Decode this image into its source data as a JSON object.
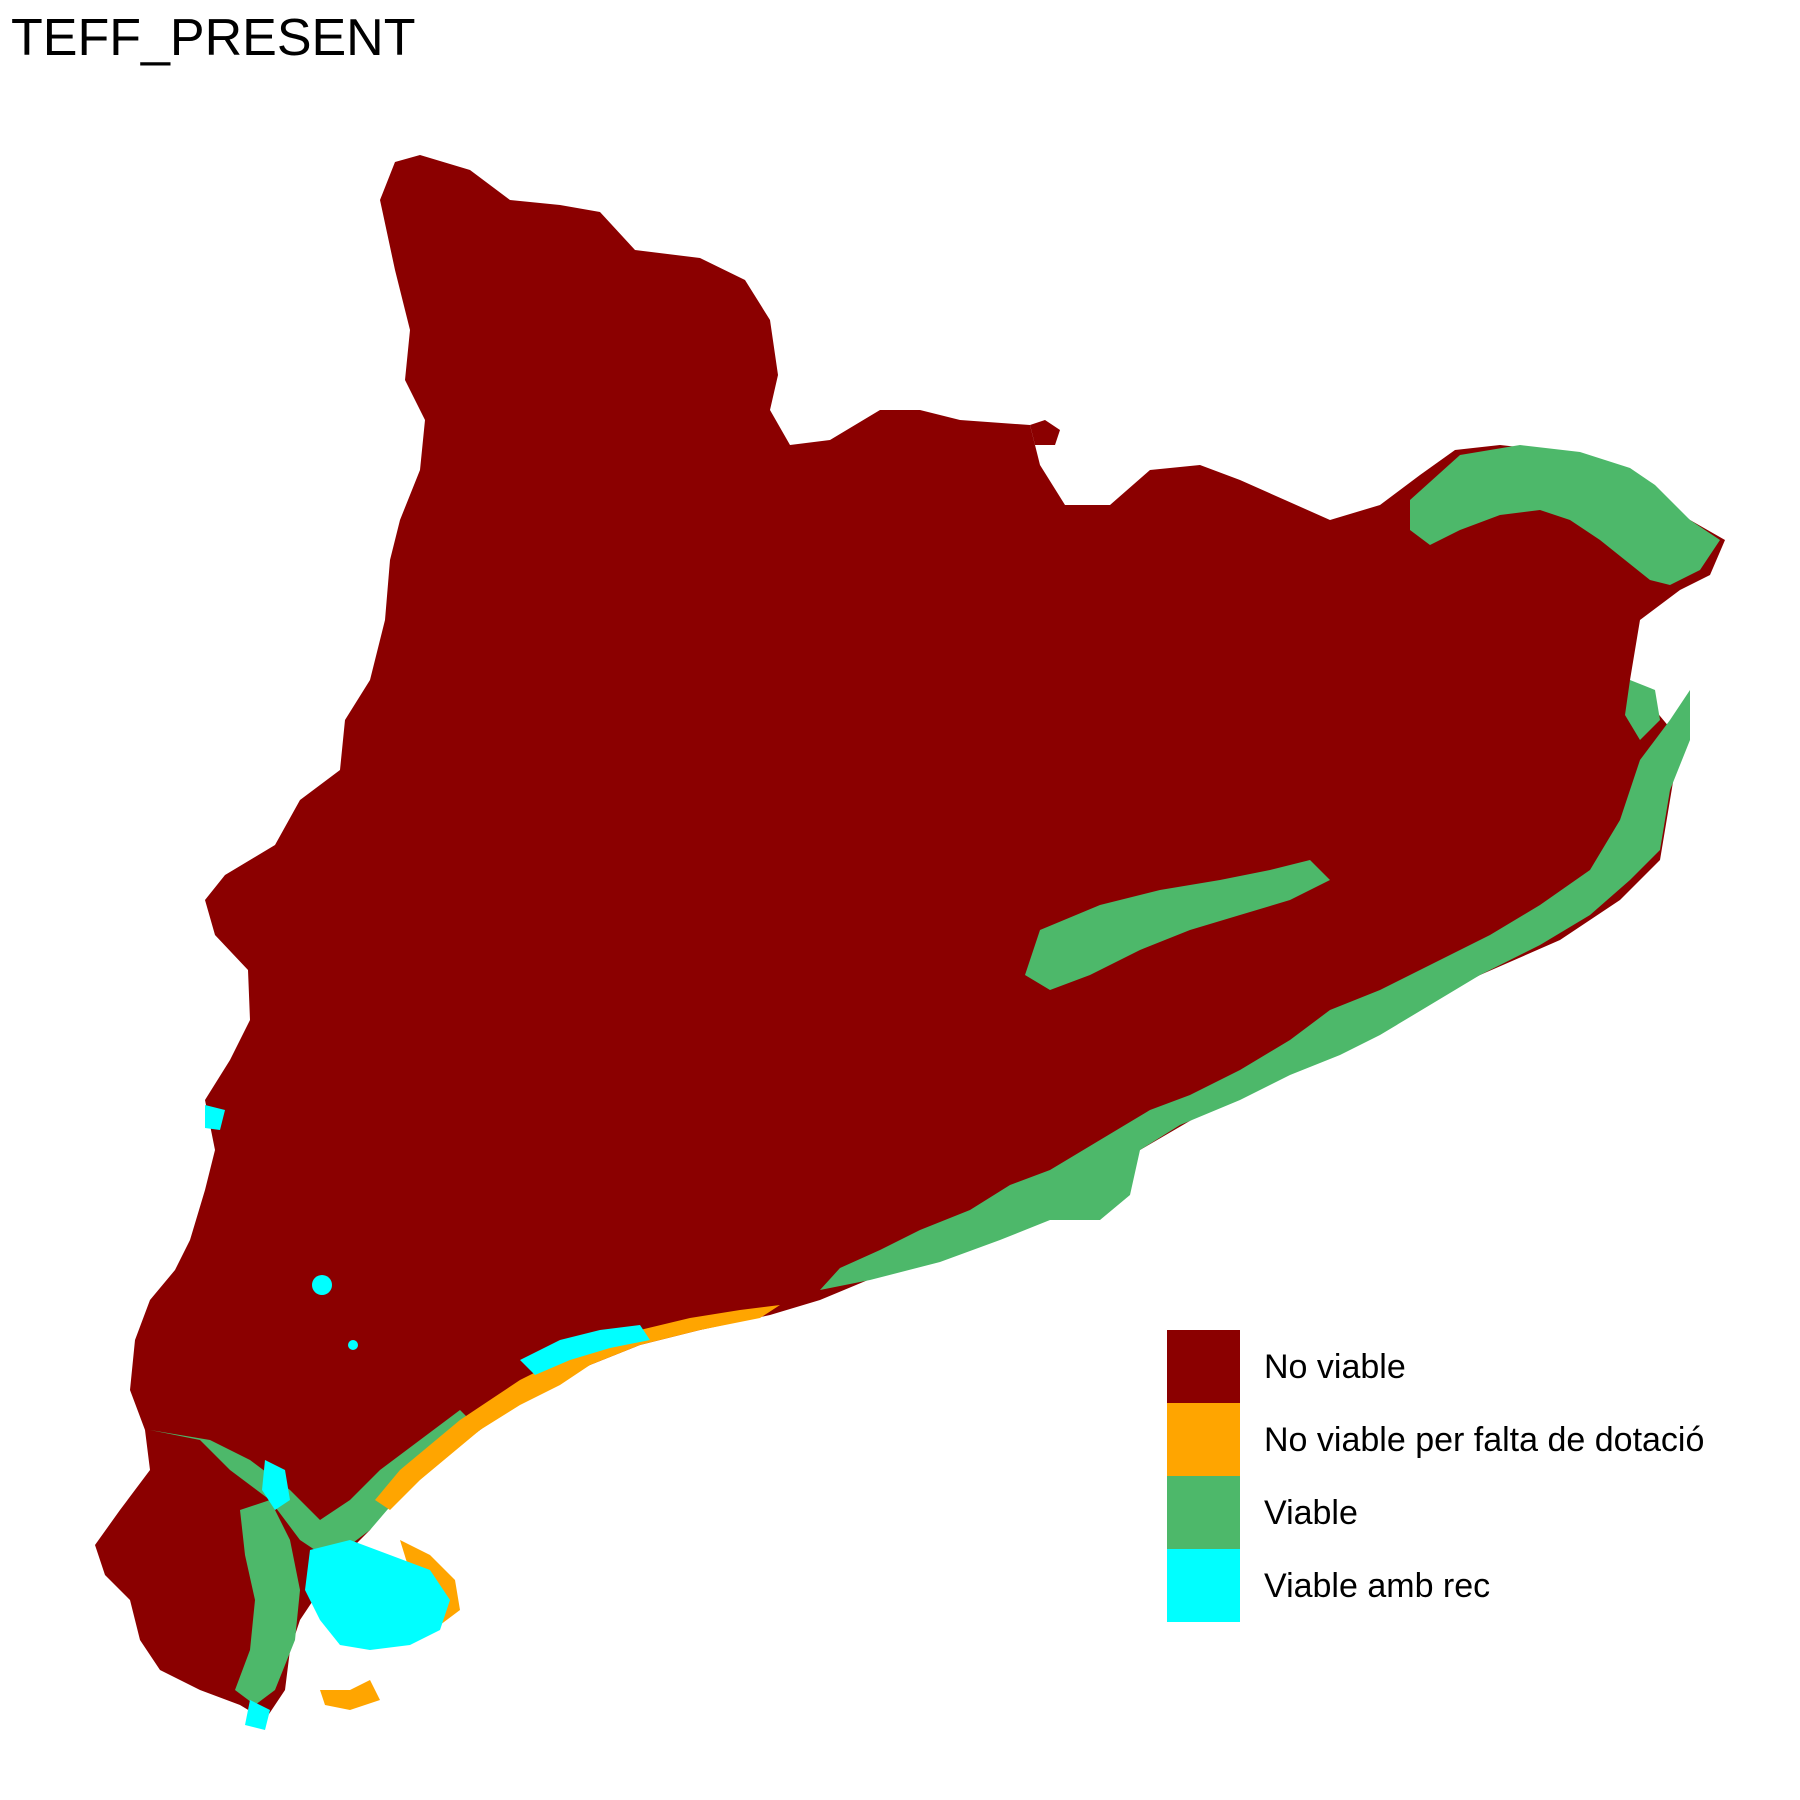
{
  "title": "TEFF_PRESENT",
  "colors": {
    "no_viable": "#8B0000",
    "no_viable_falta_dotacio": "#FFA500",
    "viable": "#4DB86A",
    "viable_amb_rec": "#00FFFF"
  },
  "legend": {
    "items": [
      {
        "label": "No viable",
        "color": "#8B0000"
      },
      {
        "label": "No viable per falta de dotació",
        "color": "#FFA500"
      },
      {
        "label": "Viable",
        "color": "#4DB86A"
      },
      {
        "label": "Viable amb rec",
        "color": "#00FFFF"
      }
    ]
  }
}
